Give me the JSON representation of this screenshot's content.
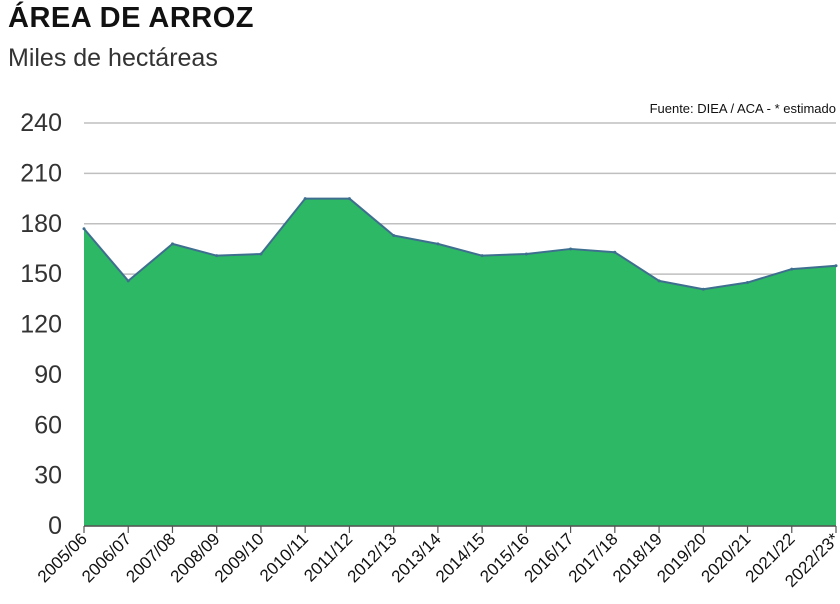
{
  "chart_data": {
    "type": "area",
    "title": "ÁREA DE ARROZ",
    "subtitle": "Miles de hectáreas",
    "source_note": "Fuente: DIEA / ACA - * estimado",
    "categories": [
      "2005/06",
      "2006/07",
      "2007/08",
      "2008/09",
      "2009/10",
      "2010/11",
      "2011/12",
      "2012/13",
      "2013/14",
      "2014/15",
      "2015/16",
      "2016/17",
      "2017/18",
      "2018/19",
      "2019/20",
      "2020/21",
      "2021/22",
      "2022/23*"
    ],
    "series": [
      {
        "values": [
          177,
          146,
          168,
          161,
          162,
          195,
          195,
          173,
          168,
          161,
          162,
          165,
          163,
          146,
          141,
          145,
          153,
          155
        ]
      }
    ],
    "ylim": [
      0,
      240
    ],
    "yticks": [
      0,
      30,
      60,
      90,
      120,
      150,
      180,
      210,
      240
    ],
    "grid": true,
    "colors": {
      "fill": "#2db865",
      "stroke": "#3f6f8f",
      "grid": "#bfbfbf",
      "axis": "#555555"
    }
  }
}
